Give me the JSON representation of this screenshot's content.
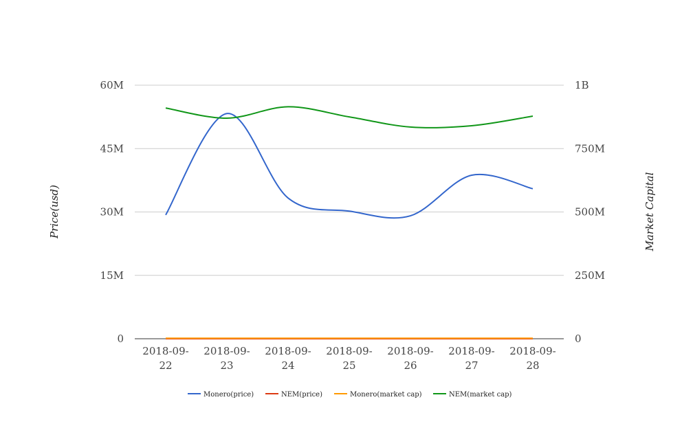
{
  "chart_data": {
    "type": "line",
    "categories": [
      "2018-09-22",
      "2018-09-23",
      "2018-09-24",
      "2018-09-25",
      "2018-09-26",
      "2018-09-27",
      "2018-09-28"
    ],
    "category_labels": [
      [
        "2018-09-",
        "22"
      ],
      [
        "2018-09-",
        "23"
      ],
      [
        "2018-09-",
        "24"
      ],
      [
        "2018-09-",
        "25"
      ],
      [
        "2018-09-",
        "26"
      ],
      [
        "2018-09-",
        "27"
      ],
      [
        "2018-09-",
        "28"
      ]
    ],
    "left_axis": {
      "title": "Price(usd)",
      "ylim": [
        0,
        60000000
      ],
      "ticks": [
        0,
        15000000,
        30000000,
        45000000,
        60000000
      ],
      "tick_labels": [
        "0",
        "15M",
        "30M",
        "45M",
        "60M"
      ]
    },
    "right_axis": {
      "title": "Market Capital",
      "ylim": [
        0,
        1000000000
      ],
      "ticks": [
        0,
        250000000,
        500000000,
        750000000,
        1000000000
      ],
      "tick_labels": [
        "0",
        "250M",
        "500M",
        "750M",
        "1B"
      ]
    },
    "series": [
      {
        "name": "Monero(price)",
        "axis": "left",
        "color": "#3366cc",
        "values": [
          29300000,
          53300000,
          33300000,
          30200000,
          29100000,
          38700000,
          35500000
        ]
      },
      {
        "name": "NEM(price)",
        "axis": "left",
        "color": "#dc3912",
        "values": [
          0.06,
          0.06,
          0.06,
          0.06,
          0.06,
          0.06,
          0.06
        ]
      },
      {
        "name": "Monero(market cap)",
        "axis": "right",
        "color": "#ff9900",
        "values": [
          1900000,
          1900000,
          1900000,
          1900000,
          1900000,
          1900000,
          1900000
        ]
      },
      {
        "name": "NEM(market cap)",
        "axis": "right",
        "color": "#109618",
        "values": [
          910000000,
          870000000,
          915000000,
          875000000,
          835000000,
          840000000,
          878000000
        ]
      }
    ],
    "grid": true,
    "legend_position": "bottom"
  }
}
